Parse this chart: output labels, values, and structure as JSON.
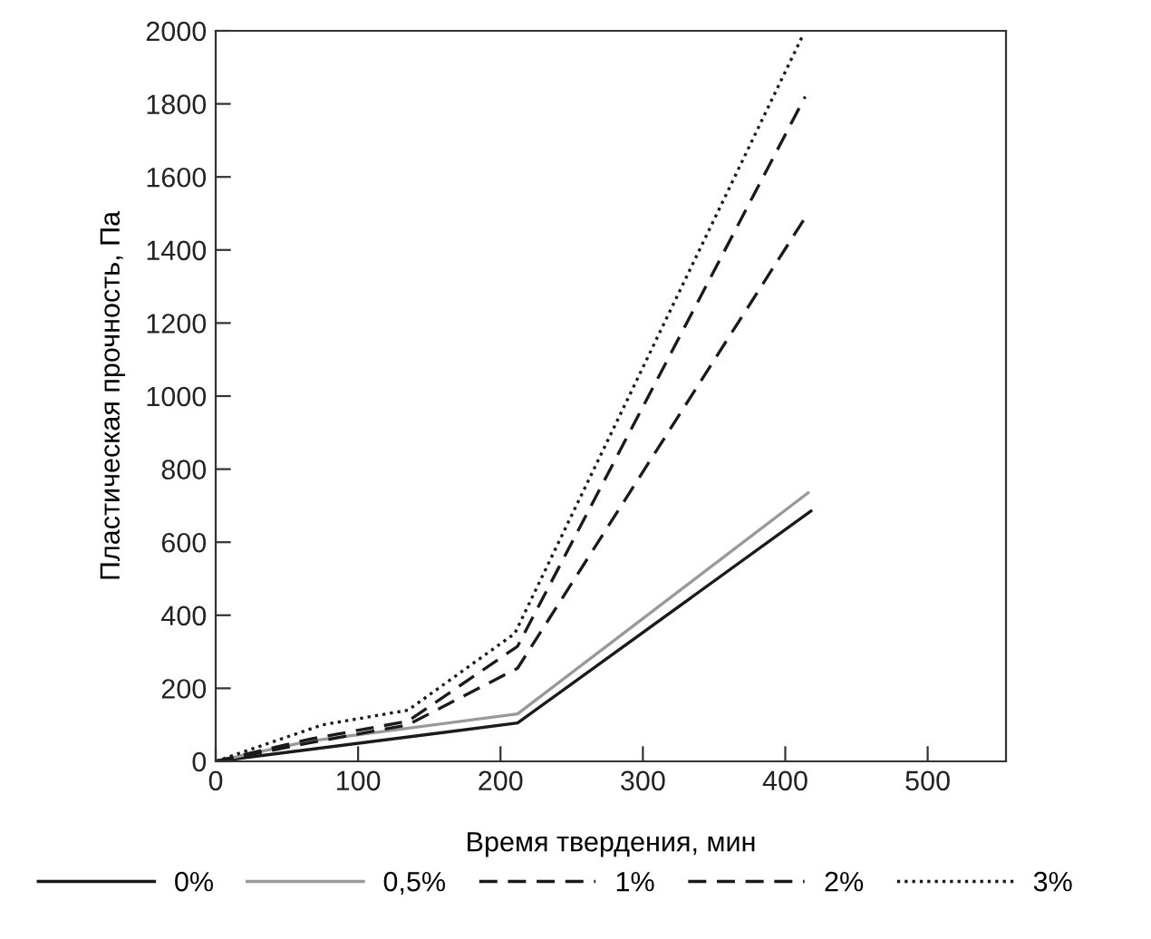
{
  "chart_data": {
    "type": "line",
    "xlabel": "Время твердения, мин",
    "ylabel": "Пластическая прочность, Па",
    "xlim": [
      0,
      555
    ],
    "xticks": [
      0,
      100,
      200,
      300,
      400,
      500
    ],
    "ylim": [
      0,
      2000
    ],
    "yticks": [
      0,
      200,
      400,
      600,
      800,
      1000,
      1200,
      1400,
      1600,
      1800,
      2000
    ],
    "grid": false,
    "legend": "bottom",
    "marker": "none",
    "series": [
      {
        "name": "0%",
        "color": "#1a1a1a",
        "line_style": "solid",
        "x": [
          0,
          212,
          418
        ],
        "values": [
          0,
          105,
          685
        ]
      },
      {
        "name": "0,5%",
        "color": "#999999",
        "line_style": "solid",
        "x": [
          0,
          65,
          212,
          416
        ],
        "values": [
          0,
          55,
          130,
          735
        ]
      },
      {
        "name": "1%",
        "color": "#1a1a1a",
        "line_style": "dashed",
        "x": [
          0,
          65,
          135,
          212,
          415
        ],
        "values": [
          0,
          50,
          100,
          255,
          1495
        ]
      },
      {
        "name": "2%",
        "color": "#1a1a1a",
        "line_style": "dashed",
        "x": [
          0,
          65,
          135,
          212,
          414
        ],
        "values": [
          0,
          60,
          110,
          315,
          1820
        ]
      },
      {
        "name": "3%",
        "color": "#1a1a1a",
        "line_style": "dotted",
        "x": [
          0,
          75,
          135,
          210,
          412
        ],
        "values": [
          0,
          100,
          140,
          350,
          1985
        ]
      }
    ]
  }
}
